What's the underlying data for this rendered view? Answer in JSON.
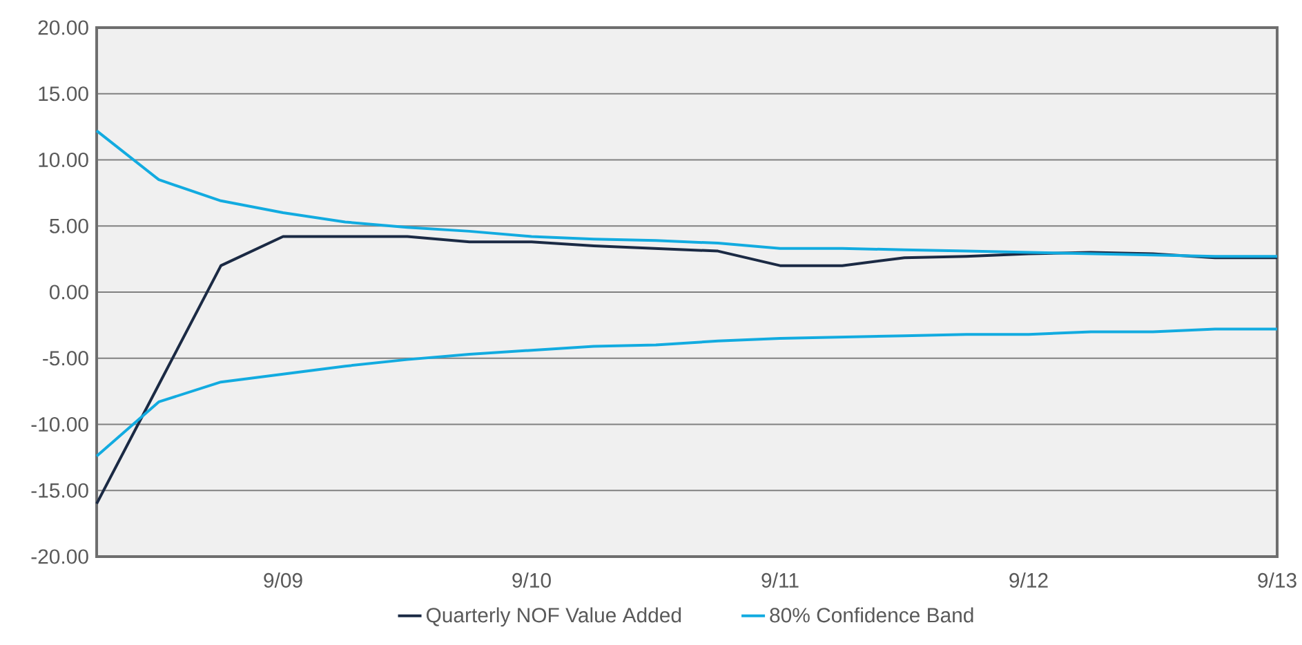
{
  "chart_data": {
    "type": "line",
    "categories": [
      null,
      null,
      null,
      "9/09",
      null,
      null,
      null,
      "9/10",
      null,
      null,
      null,
      "9/11",
      null,
      null,
      null,
      "9/12",
      null,
      null,
      null,
      "9/13"
    ],
    "series": [
      {
        "name": "Quarterly NOF Value Added",
        "color": "#1b2a44",
        "values": [
          -16,
          -7,
          2,
          4.2,
          4.2,
          4.2,
          3.8,
          3.8,
          3.5,
          3.3,
          3.1,
          2.0,
          2.0,
          2.6,
          2.7,
          2.9,
          3.0,
          2.9,
          2.6,
          2.6
        ]
      },
      {
        "name": "80% Confidence Band",
        "color": "#12abe0",
        "values": [
          12.2,
          8.5,
          6.9,
          6.0,
          5.3,
          4.9,
          4.6,
          4.2,
          4.0,
          3.9,
          3.7,
          3.3,
          3.3,
          3.2,
          3.1,
          3.0,
          2.9,
          2.8,
          2.7,
          2.7
        ]
      },
      {
        "color": "#12abe0",
        "values": [
          -12.4,
          -8.3,
          -6.8,
          -6.2,
          -5.6,
          -5.1,
          -4.7,
          -4.4,
          -4.1,
          -4.0,
          -3.7,
          -3.5,
          -3.4,
          -3.3,
          -3.2,
          -3.2,
          -3.0,
          -3.0,
          -2.8,
          -2.8
        ]
      }
    ],
    "ylim": [
      -20,
      20
    ],
    "yticks": [
      {
        "value": -20,
        "label": "-20.00"
      },
      {
        "value": -15,
        "label": "-15.00"
      },
      {
        "value": -10,
        "label": "-10.00"
      },
      {
        "value": -5,
        "label": "-5.00"
      },
      {
        "value": 0,
        "label": "0.00"
      },
      {
        "value": 5,
        "label": "5.00"
      },
      {
        "value": 10,
        "label": "10.00"
      },
      {
        "value": 15,
        "label": "15.00"
      },
      {
        "value": 20,
        "label": "20.00"
      }
    ],
    "grid": "y",
    "legend": "bottom"
  }
}
